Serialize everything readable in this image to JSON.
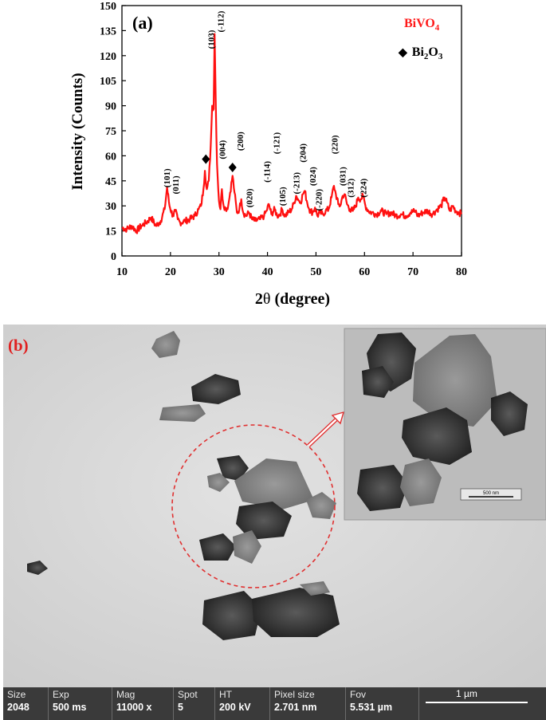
{
  "panel_a": {
    "label": "(a)",
    "legend": [
      {
        "marker": "",
        "main": "BiVO",
        "sub": "4",
        "rest": "",
        "color": "#ff1a1a"
      },
      {
        "marker": "◆",
        "main": "Bi",
        "sub": "2",
        "rest": "O",
        "sub2": "3",
        "color": "#000000"
      }
    ],
    "xlabel_prefix": "2",
    "xlabel_theta": "θ",
    "xlabel_suffix": " (degree)",
    "ylabel": "Intensity (Counts)",
    "line_color": "#ff1010",
    "peak_labels": [
      {
        "text": "(101)",
        "x": 19.2,
        "y": 41
      },
      {
        "text": "(011)",
        "x": 21.0,
        "y": 37
      },
      {
        "text": "(103)",
        "x": 28.3,
        "y": 124
      },
      {
        "text": "(-112)",
        "x": 30.3,
        "y": 134
      },
      {
        "text": "(004)",
        "x": 30.6,
        "y": 58
      },
      {
        "text": "(200)",
        "x": 34.3,
        "y": 63
      },
      {
        "text": "(020)",
        "x": 36.2,
        "y": 29
      },
      {
        "text": "(-114)",
        "x": 39.8,
        "y": 44
      },
      {
        "text": "(-121)",
        "x": 41.8,
        "y": 61
      },
      {
        "text": "(105)",
        "x": 43.0,
        "y": 30
      },
      {
        "text": "(-213)",
        "x": 45.9,
        "y": 37
      },
      {
        "text": "(204)",
        "x": 47.2,
        "y": 56
      },
      {
        "text": "(024)",
        "x": 49.3,
        "y": 42
      },
      {
        "text": "(-220)",
        "x": 50.5,
        "y": 27
      },
      {
        "text": "(220)",
        "x": 53.8,
        "y": 61
      },
      {
        "text": "(031)",
        "x": 55.4,
        "y": 42
      },
      {
        "text": "(312)",
        "x": 57.1,
        "y": 35
      },
      {
        "text": "(224)",
        "x": 59.7,
        "y": 35
      }
    ],
    "bi2o3_markers": [
      {
        "x": 27.3,
        "y": 58
      },
      {
        "x": 32.8,
        "y": 53
      }
    ]
  },
  "chart_data": {
    "type": "line",
    "title": "",
    "xlabel": "2θ (degree)",
    "ylabel": "Intensity (Counts)",
    "xlim": [
      10,
      80
    ],
    "ylim": [
      0,
      150
    ],
    "xticks": [
      10,
      20,
      30,
      40,
      50,
      60,
      70,
      80
    ],
    "yticks": [
      0,
      15,
      30,
      45,
      60,
      75,
      90,
      105,
      120,
      135,
      150
    ],
    "grid": false,
    "legend_position": "top-right",
    "series": [
      {
        "name": "BiVO4",
        "points": [
          [
            10,
            17
          ],
          [
            11,
            16
          ],
          [
            12,
            18
          ],
          [
            13,
            15
          ],
          [
            14,
            18
          ],
          [
            15,
            20
          ],
          [
            16,
            23
          ],
          [
            17,
            18
          ],
          [
            18,
            21
          ],
          [
            18.8,
            28
          ],
          [
            19.3,
            41
          ],
          [
            19.8,
            30
          ],
          [
            20.5,
            24
          ],
          [
            21.0,
            27
          ],
          [
            21.5,
            22
          ],
          [
            22,
            20
          ],
          [
            23,
            21
          ],
          [
            24,
            22
          ],
          [
            25,
            24
          ],
          [
            25.8,
            28
          ],
          [
            26.3,
            30
          ],
          [
            26.8,
            40
          ],
          [
            27.1,
            51
          ],
          [
            27.5,
            40
          ],
          [
            27.9,
            45
          ],
          [
            28.3,
            66
          ],
          [
            28.6,
            90
          ],
          [
            28.9,
            88
          ],
          [
            29.1,
            133
          ],
          [
            29.35,
            90
          ],
          [
            29.6,
            55
          ],
          [
            30.0,
            33
          ],
          [
            30.3,
            28
          ],
          [
            30.6,
            40
          ],
          [
            30.9,
            31
          ],
          [
            31.4,
            28
          ],
          [
            31.9,
            30
          ],
          [
            32.3,
            38
          ],
          [
            32.8,
            48
          ],
          [
            33.2,
            38
          ],
          [
            33.7,
            26
          ],
          [
            34.2,
            28
          ],
          [
            34.6,
            34
          ],
          [
            35.0,
            26
          ],
          [
            35.6,
            24
          ],
          [
            36.2,
            26
          ],
          [
            36.8,
            22
          ],
          [
            37.5,
            21
          ],
          [
            38.5,
            22
          ],
          [
            39.3,
            24
          ],
          [
            39.8,
            27
          ],
          [
            40.3,
            31
          ],
          [
            40.8,
            25
          ],
          [
            41.5,
            28
          ],
          [
            42.0,
            24
          ],
          [
            42.6,
            25
          ],
          [
            43.0,
            28
          ],
          [
            43.6,
            24
          ],
          [
            44.3,
            26
          ],
          [
            45.0,
            28
          ],
          [
            45.5,
            32
          ],
          [
            45.9,
            36
          ],
          [
            46.3,
            34
          ],
          [
            46.8,
            32
          ],
          [
            47.3,
            37
          ],
          [
            47.7,
            39
          ],
          [
            48.1,
            33
          ],
          [
            48.6,
            28
          ],
          [
            49.3,
            26
          ],
          [
            49.8,
            29
          ],
          [
            50.3,
            24
          ],
          [
            50.8,
            26
          ],
          [
            51.4,
            25
          ],
          [
            52.0,
            27
          ],
          [
            52.6,
            28
          ],
          [
            53.2,
            35
          ],
          [
            53.7,
            42
          ],
          [
            54.1,
            37
          ],
          [
            54.6,
            31
          ],
          [
            55.0,
            30
          ],
          [
            55.5,
            36
          ],
          [
            55.9,
            37
          ],
          [
            56.4,
            31
          ],
          [
            57.0,
            28
          ],
          [
            57.6,
            27
          ],
          [
            58.2,
            30
          ],
          [
            58.7,
            35
          ],
          [
            59.2,
            34
          ],
          [
            59.7,
            36
          ],
          [
            60.2,
            30
          ],
          [
            60.8,
            27
          ],
          [
            61.5,
            26
          ],
          [
            62.5,
            25
          ],
          [
            63.5,
            27
          ],
          [
            64.5,
            25
          ],
          [
            65.5,
            26
          ],
          [
            66.5,
            24
          ],
          [
            67.5,
            25
          ],
          [
            68.5,
            24
          ],
          [
            69.5,
            26
          ],
          [
            70.5,
            27
          ],
          [
            71.0,
            24
          ],
          [
            72.0,
            26
          ],
          [
            73.0,
            27
          ],
          [
            74.0,
            25
          ],
          [
            75.0,
            28
          ],
          [
            75.8,
            30
          ],
          [
            76.5,
            35
          ],
          [
            77.0,
            32
          ],
          [
            77.6,
            27
          ],
          [
            78.2,
            30
          ],
          [
            78.8,
            27
          ],
          [
            79.5,
            26
          ],
          [
            80,
            25
          ]
        ]
      }
    ]
  },
  "panel_b": {
    "label": "(b)",
    "inset_scale_label": "500 nm",
    "info_bar": [
      {
        "label": "Size",
        "value": "2048"
      },
      {
        "label": "Exp",
        "value": "500 ms"
      },
      {
        "label": "Mag",
        "value": "11000 x"
      },
      {
        "label": "Spot",
        "value": "5"
      },
      {
        "label": "HT",
        "value": "200 kV"
      },
      {
        "label": "Pixel size",
        "value": "2.701 nm"
      },
      {
        "label": "Fov",
        "value": "5.531 µm"
      }
    ],
    "scale_bar_label": "1 µm"
  }
}
